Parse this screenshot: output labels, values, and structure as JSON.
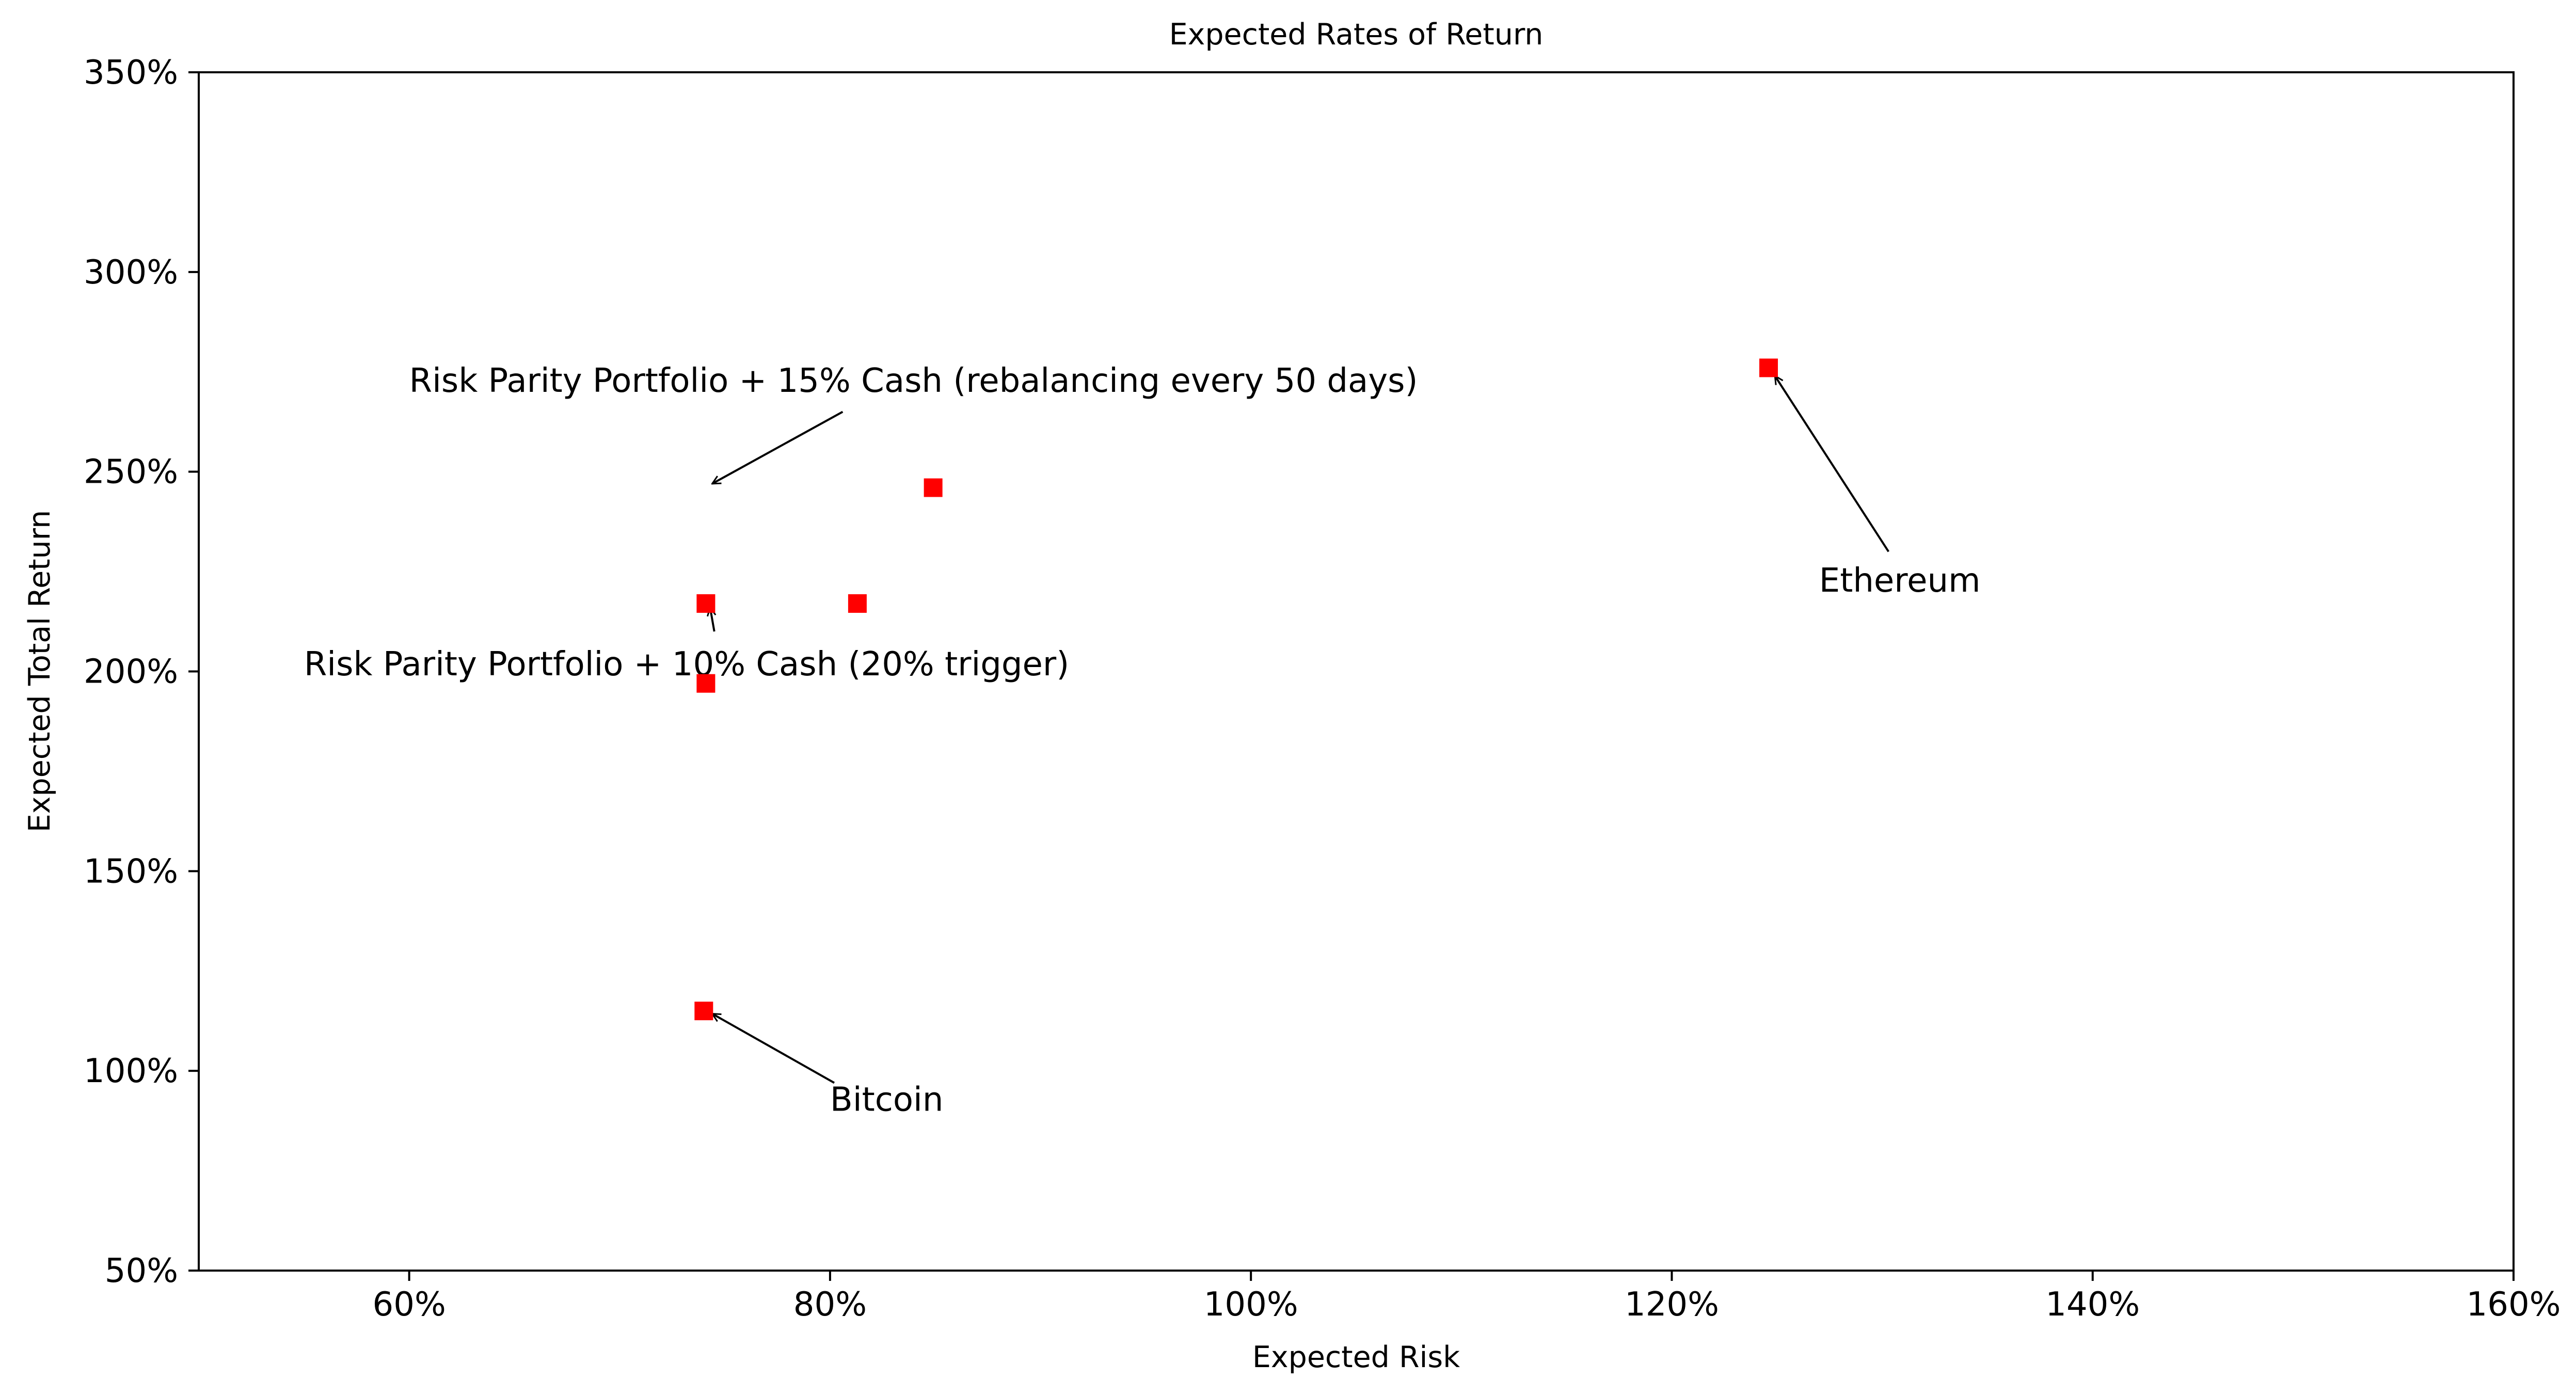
{
  "chart_data": {
    "type": "scatter",
    "title": "Expected Rates of Return",
    "xlabel": "Expected Risk",
    "ylabel": "Expected Total Return",
    "xlim": [
      0.5,
      1.6
    ],
    "ylim": [
      0.5,
      3.5
    ],
    "x_ticks": [
      {
        "value": 0.6,
        "label": "60%"
      },
      {
        "value": 0.8,
        "label": "80%"
      },
      {
        "value": 1.0,
        "label": "100%"
      },
      {
        "value": 1.2,
        "label": "120%"
      },
      {
        "value": 1.4,
        "label": "140%"
      },
      {
        "value": 1.6,
        "label": "160%"
      }
    ],
    "y_ticks": [
      {
        "value": 0.5,
        "label": "50%"
      },
      {
        "value": 1.0,
        "label": "100%"
      },
      {
        "value": 1.5,
        "label": "150%"
      },
      {
        "value": 2.0,
        "label": "200%"
      },
      {
        "value": 2.5,
        "label": "250%"
      },
      {
        "value": 3.0,
        "label": "300%"
      },
      {
        "value": 3.5,
        "label": "350%"
      }
    ],
    "grid": false,
    "marker_color": "#ff0000",
    "marker": "square",
    "points": [
      {
        "x": 0.74,
        "y": 1.15
      },
      {
        "x": 0.741,
        "y": 1.97
      },
      {
        "x": 0.741,
        "y": 2.17
      },
      {
        "x": 0.813,
        "y": 2.17
      },
      {
        "x": 0.849,
        "y": 2.46
      },
      {
        "x": 1.246,
        "y": 2.76
      }
    ],
    "annotations": [
      {
        "text": "Risk Parity Portfolio + 15% Cash (rebalancing every 50 days)",
        "text_at": {
          "x": 0.6,
          "y": 2.7
        },
        "arrow_to": {
          "x": 0.744,
          "y": 2.47
        },
        "arrow_from": {
          "x": 0.806,
          "y": 2.65
        },
        "anchor": "start"
      },
      {
        "text": "Risk Parity Portfolio + 10% Cash (20% trigger)",
        "text_at": {
          "x": 0.55,
          "y": 1.99
        },
        "arrow_to": {
          "x": 0.743,
          "y": 2.16
        },
        "arrow_from": {
          "x": 0.745,
          "y": 2.1
        },
        "anchor": "start"
      },
      {
        "text": "Bitcoin",
        "text_at": {
          "x": 0.8,
          "y": 0.9
        },
        "arrow_to": {
          "x": 0.744,
          "y": 1.143
        },
        "arrow_from": {
          "x": 0.802,
          "y": 0.97
        },
        "anchor": "start"
      },
      {
        "text": "Ethereum",
        "text_at": {
          "x": 1.27,
          "y": 2.2
        },
        "arrow_to": {
          "x": 1.249,
          "y": 2.74
        },
        "arrow_from": {
          "x": 1.303,
          "y": 2.3
        },
        "anchor": "start"
      }
    ]
  }
}
